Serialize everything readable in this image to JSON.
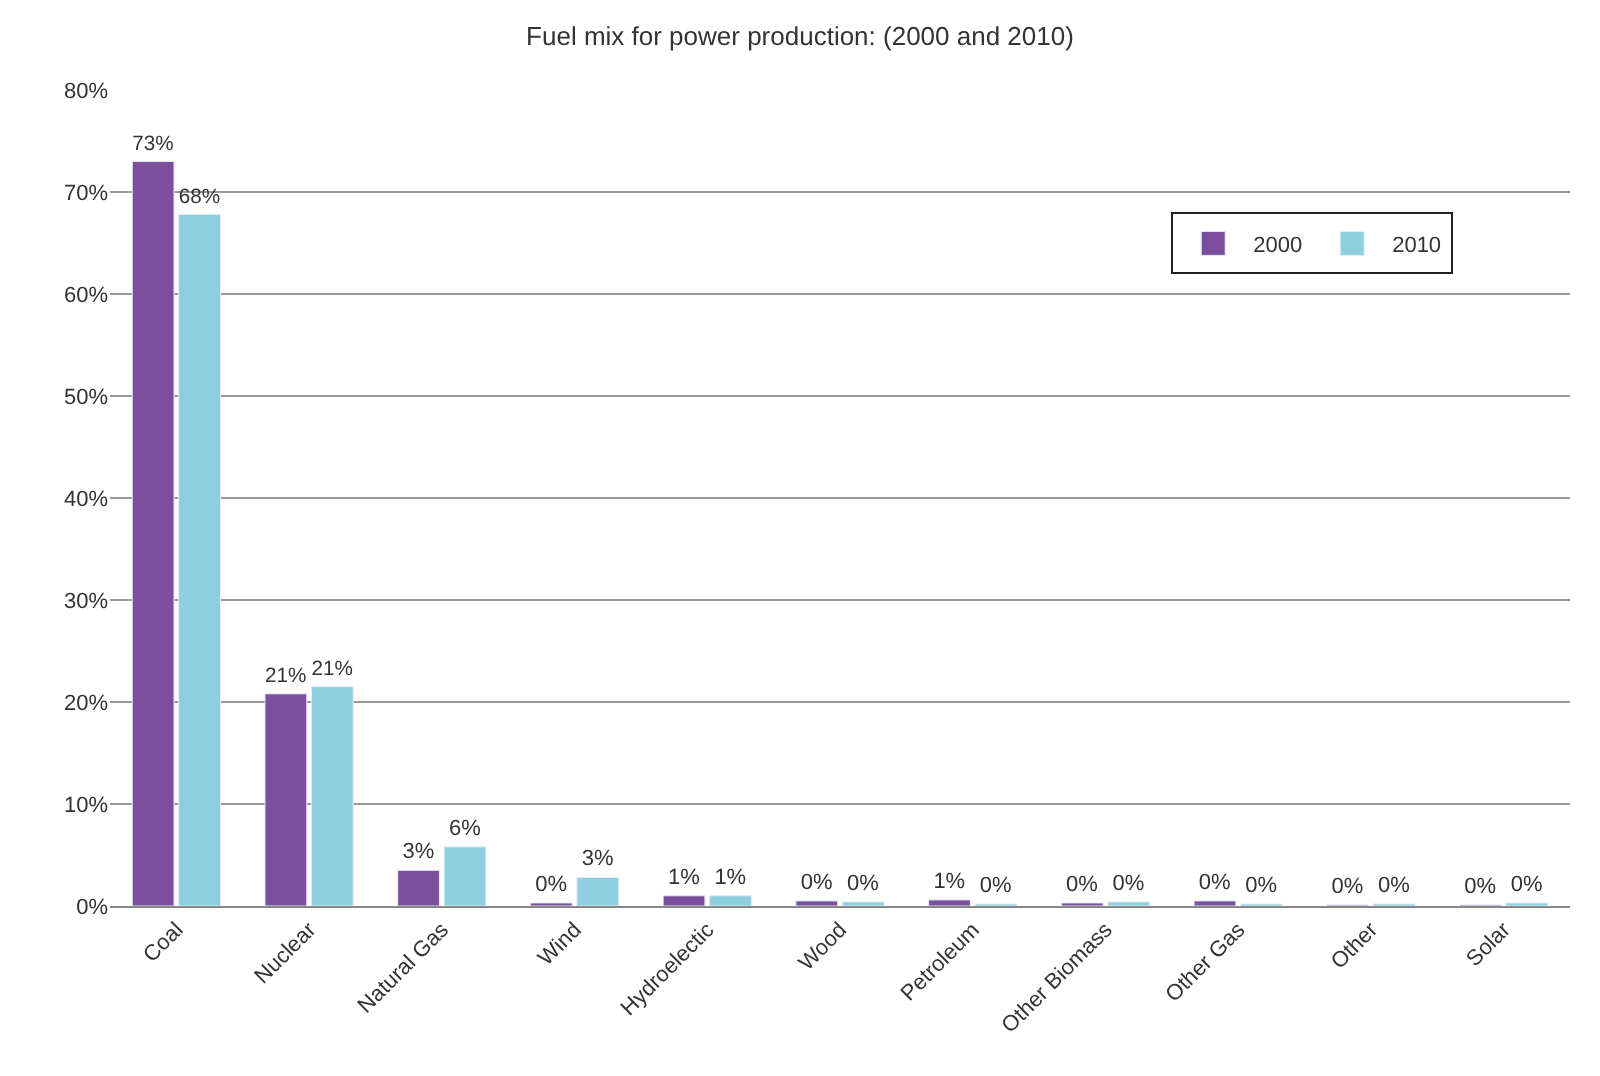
{
  "chart_data": {
    "type": "bar",
    "title": "Fuel mix for power production: (2000 and 2010)",
    "categories": [
      "Coal",
      "Nuclear",
      "Natural Gas",
      "Wind",
      "Hydroelectic",
      "Wood",
      "Petroleum",
      "Other Biomass",
      "Other Gas",
      "Other",
      "Solar"
    ],
    "series": [
      {
        "name": "2000",
        "color": "#7b4f9d",
        "values": [
          73,
          20.8,
          3.5,
          0.3,
          1,
          0.5,
          0.6,
          0.3,
          0.5,
          0.1,
          0.1
        ],
        "value_labels": [
          "73%",
          "21%",
          "3%",
          "0%",
          "1%",
          "0%",
          "1%",
          "0%",
          "0%",
          "0%",
          "0%"
        ]
      },
      {
        "name": "2010",
        "color": "#8ecfdf",
        "values": [
          67.8,
          21.5,
          5.8,
          2.8,
          1,
          0.4,
          0.2,
          0.4,
          0.2,
          0.2,
          0.3
        ],
        "value_labels": [
          "68%",
          "21%",
          "6%",
          "3%",
          "1%",
          "0%",
          "0%",
          "0%",
          "0%",
          "0%",
          "0%"
        ]
      }
    ],
    "ylim": [
      0,
      80
    ],
    "yticks": [
      {
        "value": 0,
        "label": "0%"
      },
      {
        "value": 10,
        "label": "10%"
      },
      {
        "value": 20,
        "label": "20%"
      },
      {
        "value": 30,
        "label": "30%"
      },
      {
        "value": 40,
        "label": "40%"
      },
      {
        "value": 50,
        "label": "50%"
      },
      {
        "value": 60,
        "label": "60%"
      },
      {
        "value": 70,
        "label": "70%"
      },
      {
        "value": 80,
        "label": "80%"
      }
    ],
    "grid": "y",
    "legend": "top right"
  }
}
